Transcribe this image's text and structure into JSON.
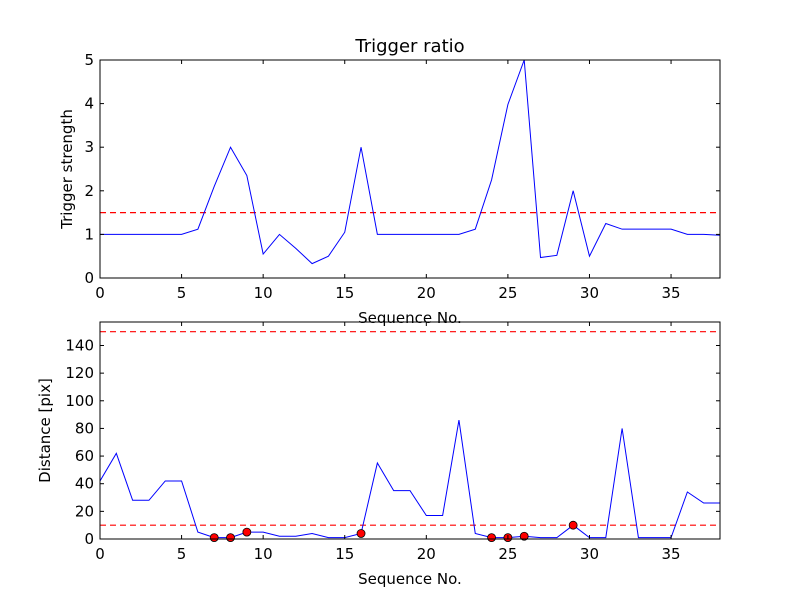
{
  "chart_data": [
    {
      "type": "line",
      "title": "Trigger ratio",
      "xlabel": "Sequence No.",
      "ylabel": "Trigger strength",
      "xlim": [
        0,
        38
      ],
      "ylim": [
        0,
        5
      ],
      "xticks": [
        0,
        5,
        10,
        15,
        20,
        25,
        30,
        35
      ],
      "yticks": [
        0,
        1,
        2,
        3,
        4,
        5
      ],
      "grid": false,
      "series": [
        {
          "color": "#0000ff",
          "x": [
            0,
            1,
            2,
            3,
            4,
            5,
            6,
            7,
            8,
            9,
            10,
            11,
            12,
            13,
            14,
            15,
            16,
            17,
            18,
            19,
            20,
            21,
            22,
            23,
            24,
            25,
            26,
            27,
            28,
            29,
            30,
            31,
            32,
            33,
            34,
            35,
            36,
            37,
            38
          ],
          "values": [
            1,
            1,
            1,
            1,
            1,
            1,
            1.12,
            2.1,
            3,
            2.35,
            0.55,
            1,
            0.68,
            0.33,
            0.5,
            1.05,
            3,
            1,
            1,
            1,
            1,
            1,
            1,
            1.12,
            2.25,
            3.98,
            5,
            0.47,
            0.52,
            2,
            0.5,
            1.25,
            1.12,
            1.12,
            1.12,
            1.12,
            1,
            1,
            0.98
          ]
        }
      ],
      "hlines": [
        {
          "value": 1.5,
          "color": "#ff0000",
          "style": "dashed"
        }
      ]
    },
    {
      "type": "line",
      "title": "",
      "xlabel": "Sequence No.",
      "ylabel": "Distance [pix]",
      "xlim": [
        0,
        38
      ],
      "ylim": [
        0,
        157
      ],
      "xticks": [
        0,
        5,
        10,
        15,
        20,
        25,
        30,
        35
      ],
      "yticks": [
        0,
        20,
        40,
        60,
        80,
        100,
        120,
        140
      ],
      "grid": false,
      "series": [
        {
          "color": "#0000ff",
          "x": [
            0,
            1,
            2,
            3,
            4,
            5,
            6,
            7,
            8,
            9,
            10,
            11,
            12,
            13,
            14,
            15,
            16,
            17,
            18,
            19,
            20,
            21,
            22,
            23,
            24,
            25,
            26,
            27,
            28,
            29,
            30,
            31,
            32,
            33,
            34,
            35,
            36,
            37,
            38
          ],
          "values": [
            42,
            62,
            28,
            28,
            42,
            42,
            5,
            1,
            1,
            5,
            5,
            2,
            2,
            4,
            1,
            1,
            4,
            55,
            35,
            35,
            17,
            17,
            86,
            4,
            1,
            1,
            2,
            1,
            1,
            10,
            1,
            1,
            80,
            1,
            1,
            1,
            34,
            26,
            26
          ]
        }
      ],
      "markers": {
        "color": "#ff0000",
        "x": [
          7,
          8,
          9,
          16,
          24,
          25,
          26,
          29
        ],
        "values": [
          1,
          1,
          5,
          4,
          1,
          1,
          2,
          10
        ]
      },
      "hlines": [
        {
          "value": 150,
          "color": "#ff0000",
          "style": "dashed"
        },
        {
          "value": 10,
          "color": "#ff0000",
          "style": "dashed"
        }
      ]
    }
  ]
}
